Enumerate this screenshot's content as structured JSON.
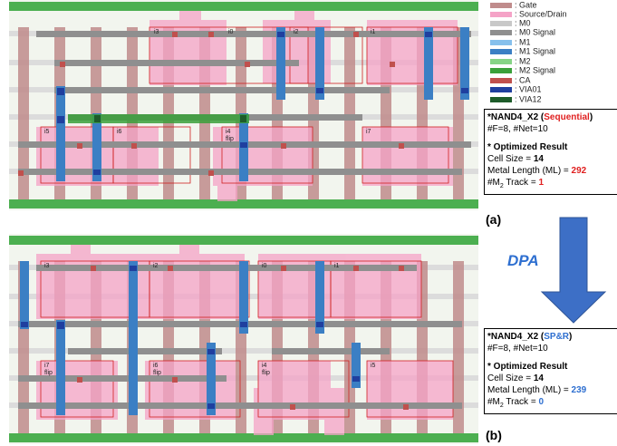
{
  "legend": [
    ": Gate",
    ": Source/Drain",
    ": M0",
    ": M0 Signal",
    ": M1",
    ": M1 Signal",
    ": M2",
    ": M2 Signal",
    ": CA",
    ": VIA01",
    ": VIA12"
  ],
  "panel_a": {
    "label": "(a)",
    "instances": [
      "i3",
      "i0",
      "i2",
      "i1",
      "i5",
      "i6",
      "i4",
      "flip",
      "i7"
    ],
    "box": {
      "title": "*NAND4_X2 (",
      "method": "Sequential",
      "title_end": ")",
      "nets": "#F=8, #Net=10",
      "heading": "* Optimized Result",
      "cell_size_label": "Cell Size = ",
      "cell_size": 14,
      "ml_label": "Metal Length (ML) = ",
      "ml": 292,
      "track_label": "#M",
      "track_sub": 2,
      "track_label_end": " Track = ",
      "track": 1
    }
  },
  "arrow_label": "DPA",
  "panel_b": {
    "label": "(b)",
    "instances": [
      "i3",
      "i2",
      "i0",
      "i1",
      "i7",
      "flip",
      "i6",
      "flip",
      "i4",
      "flip",
      "i5"
    ],
    "box": {
      "title": "*NAND4_X2 (",
      "method": "SP&R",
      "title_end": ")",
      "nets": "#F=8, #Net=10",
      "heading": "* Optimized Result",
      "cell_size_label": "Cell Size = ",
      "cell_size": 14,
      "ml_label": "Metal Length (ML) = ",
      "ml": 239,
      "track_label": "#M",
      "track_sub": 2,
      "track_label_end": " Track = ",
      "track": 0
    }
  }
}
